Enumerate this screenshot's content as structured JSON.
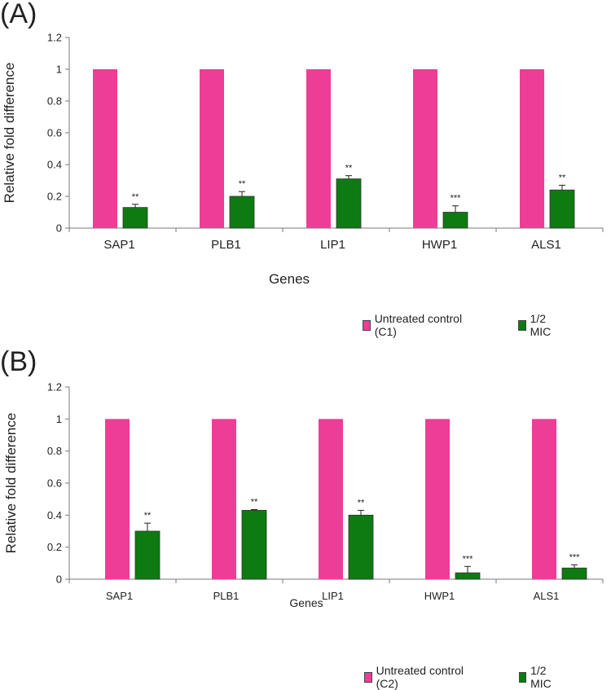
{
  "colors": {
    "control": "#EE3D96",
    "treatment": "#0E7A12",
    "axis": "#7a7a7a",
    "bar_edge": "#333333"
  },
  "chart_data": [
    {
      "panel_label": "(A)",
      "type": "bar",
      "categories": [
        "SAP1",
        "PLB1",
        "LIP1",
        "HWP1",
        "ALS1"
      ],
      "series": [
        {
          "name": "Untreated control (C1)",
          "values": [
            1,
            1,
            1,
            1,
            1
          ],
          "errors": [
            0,
            0,
            0,
            0,
            0
          ],
          "annotations": [
            "",
            "",
            "",
            "",
            ""
          ]
        },
        {
          "name": "1/2 MIC",
          "values": [
            0.13,
            0.2,
            0.31,
            0.1,
            0.24
          ],
          "errors": [
            0.02,
            0.03,
            0.02,
            0.04,
            0.03
          ],
          "annotations": [
            "**",
            "**",
            "**",
            "***",
            "**"
          ]
        }
      ],
      "xlabel": "Genes",
      "ylabel": "Relative fold difference",
      "ylim": [
        0,
        1.2
      ],
      "yticks": [
        "0",
        "0.2",
        "0.4",
        "0.6",
        "0.8",
        "1",
        "1.2"
      ],
      "legend": [
        "Untreated control (C1)",
        "1/2 MIC"
      ]
    },
    {
      "panel_label": "(B)",
      "type": "bar",
      "categories": [
        "SAP1",
        "PLB1",
        "LIP1",
        "HWP1",
        "ALS1"
      ],
      "series": [
        {
          "name": "Untreated control (C2)",
          "values": [
            1,
            1,
            1,
            1,
            1
          ],
          "errors": [
            0,
            0,
            0,
            0,
            0
          ],
          "annotations": [
            "",
            "",
            "",
            "",
            ""
          ]
        },
        {
          "name": "1/2 MIC",
          "values": [
            0.3,
            0.43,
            0.4,
            0.04,
            0.07
          ],
          "errors": [
            0.05,
            0.005,
            0.03,
            0.04,
            0.02
          ],
          "annotations": [
            "**",
            "**",
            "**",
            "***",
            "***"
          ]
        }
      ],
      "xlabel": "Genes",
      "ylabel": "Relative fold difference",
      "ylim": [
        0,
        1.2
      ],
      "yticks": [
        "0",
        "0.2",
        "0.4",
        "0.6",
        "0.8",
        "1",
        "1.2"
      ],
      "legend": [
        "Untreated control (C2)",
        "1/2 MIC"
      ]
    }
  ]
}
